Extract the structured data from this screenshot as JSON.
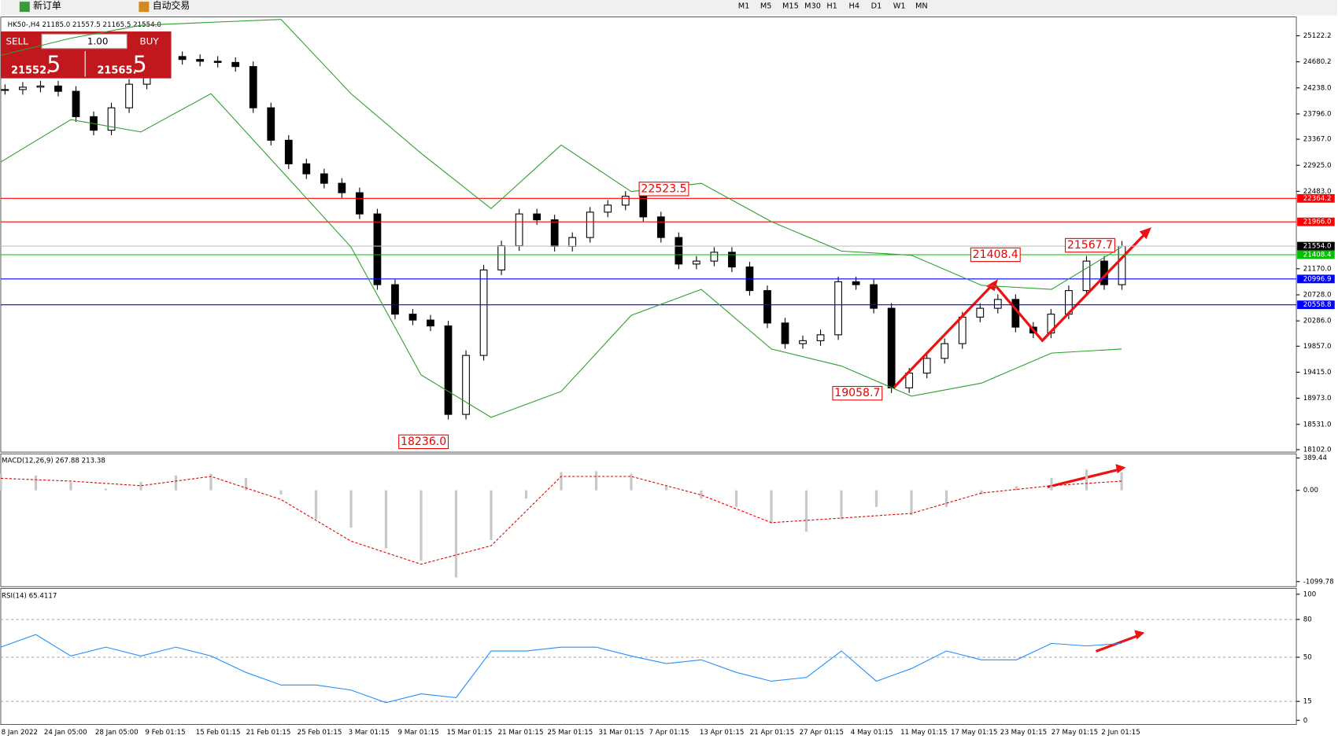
{
  "toolbar": {
    "new_order": "新订单",
    "auto_trading": "自动交易",
    "timeframes": [
      "M1",
      "M5",
      "M15",
      "M30",
      "H1",
      "H4",
      "D1",
      "W1",
      "MN"
    ]
  },
  "chart": {
    "symbol_info": "HK50-,H4 21185.0 21557.5 21165.5 21554.0",
    "ylim": [
      18075,
      25411
    ],
    "yticks": [
      25122.2,
      24680.2,
      {
        "value": 24238,
        "label": "24238.0"
      },
      {
        "value": 23796,
        "label": "23796.0"
      },
      {
        "value": 23367,
        "label": "23367.0"
      },
      {
        "value": 22925,
        "label": "22925.0"
      },
      {
        "value": 22483,
        "label": "22483.0"
      },
      {
        "value": 21170,
        "label": "21170.0"
      },
      {
        "value": 20728,
        "label": "20728.0"
      },
      {
        "value": 20286,
        "label": "20286.0"
      },
      {
        "value": 19857,
        "label": "19857.0"
      },
      {
        "value": 19415,
        "label": "19415.0"
      },
      {
        "value": 18973,
        "label": "18973.0"
      },
      {
        "value": 18531,
        "label": "18531.0"
      },
      {
        "value": 18102,
        "label": "18102.0"
      }
    ],
    "candles": {
      "close": [
        24210,
        24250,
        24270,
        24180,
        23750,
        23520,
        23900,
        24300,
        24680,
        24770,
        24720,
        24690,
        24670,
        24600,
        23900,
        23350,
        22950,
        22780,
        22620,
        22460,
        22100,
        20900,
        20400,
        20300,
        20200,
        18700,
        19700,
        21150,
        21560,
        22100,
        22000,
        21550,
        21700,
        22130,
        22250,
        22400,
        22050,
        21700,
        21250,
        21300,
        21450,
        21200,
        20800,
        20250,
        19900,
        19950,
        20050,
        20950,
        20900,
        20500,
        19150,
        19400,
        19650,
        19900,
        20350,
        20500,
        20650,
        20180,
        20080,
        20400,
        20800,
        21300,
        20900,
        21554
      ]
    },
    "bands": {
      "color": "#2e9e2e",
      "upper": [
        24790,
        25080,
        25300,
        25350,
        25400,
        24140,
        23130,
        22190,
        23270,
        22480,
        22620,
        21970,
        21470,
        21400,
        20890,
        20820,
        21540
      ],
      "lower": [
        22980,
        23700,
        23490,
        24140,
        22840,
        21540,
        19370,
        18650,
        19090,
        20380,
        20820,
        19810,
        19520,
        19010,
        19230,
        19740,
        19810
      ]
    },
    "levels": [
      {
        "value": 22364.2,
        "color": "#ff0000",
        "tag_color": "#ff0000"
      },
      {
        "value": {
          "value": 21966,
          "label": "21966.0"
        },
        "color": "#ff0000",
        "tag_color": "#ff0000"
      },
      {
        "value": {
          "value": 21554,
          "label": "21554.0"
        },
        "color": "#c0c0c0",
        "tag_color": "#000000"
      },
      {
        "value": 21408.4,
        "color": "#00c000",
        "tag_color": "#00c000"
      },
      {
        "value": 20996.9,
        "color": "#0000ff",
        "tag_color": "#0000ff"
      },
      {
        "value": 20558.8,
        "color": "#0000ff",
        "tag_color": "#0000ff"
      }
    ],
    "annotations": [
      22523.5,
      21408.4,
      21567.7,
      19058.7,
      {
        "value": 18236,
        "label": "18236.0"
      }
    ],
    "macd": {
      "label": "MACD(12,26,9) 267.88 213.38",
      "ylim": [
        -1150,
        430
      ],
      "yticks": [
        389.44,
        {
          "value": 0,
          "label": "0.00"
        },
        -1099.78
      ],
      "histogram": [
        200,
        180,
        100,
        20,
        100,
        180,
        200,
        150,
        -50,
        -350,
        -450,
        -700,
        -850,
        -1050,
        -600,
        -100,
        220,
        230,
        200,
        50,
        -100,
        -200,
        -400,
        -500,
        -350,
        -200,
        -300,
        -200,
        -50,
        50,
        150,
        250,
        220
      ],
      "signal": [
        145,
        111,
        56,
        167,
        -111,
        -612,
        -890,
        -668,
        167,
        167,
        -56,
        -390,
        -334,
        -278,
        -33,
        56,
        111
      ]
    },
    "rsi": {
      "label": "RSI(14) 65.4117",
      "ylim": [
        -4,
        104
      ],
      "yticks": [
        100,
        80,
        50,
        15,
        0
      ],
      "levels": [
        80,
        50,
        15
      ],
      "values": [
        58,
        68,
        51,
        58,
        51,
        58,
        51,
        38,
        28,
        28,
        24,
        14,
        21,
        18,
        55,
        55,
        58,
        58,
        51,
        45,
        48,
        38,
        31,
        34,
        55,
        31,
        41,
        55,
        48,
        48,
        61,
        59,
        61
      ]
    },
    "time_labels": [
      "8 Jan 2022",
      "24 Jan 05:00",
      "28 Jan 05:00",
      "9 Feb 01:15",
      "15 Feb 01:15",
      "21 Feb 01:15",
      "25 Feb 01:15",
      "3 Mar 01:15",
      "9 Mar 01:15",
      "15 Mar 01:15",
      "21 Mar 01:15",
      "25 Mar 01:15",
      "31 Mar 01:15",
      "7 Apr 01:15",
      "13 Apr 01:15",
      "21 Apr 01:15",
      "27 Apr 01:15",
      "4 May 01:15",
      "11 May 01:15",
      "17 May 01:15",
      "23 May 01:15",
      "27 May 01:15",
      "2 Jun 01:15"
    ]
  },
  "trade_panel": {
    "sell": "SELL",
    "buy": "BUY",
    "volume": "1.00",
    "bid_main": "21552.",
    "bid_big": "5",
    "ask_main": "21565.",
    "ask_big": "5"
  }
}
